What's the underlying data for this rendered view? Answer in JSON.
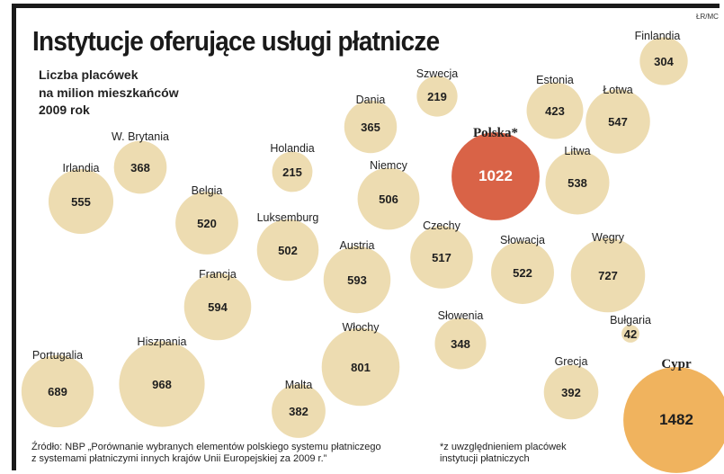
{
  "credit": "ŁR/MC",
  "title": "Instytucje oferujące usługi płatnicze",
  "subtitle": {
    "line1": "Liczba placówek",
    "line2": "na milion mieszkańców",
    "line3": "2009 rok"
  },
  "colors": {
    "bubble": "#eddcb1",
    "highlight_poland": "#d96347",
    "highlight_cyprus": "#f0b35e"
  },
  "chart_data": {
    "type": "bubble",
    "title": "Instytucje oferujące usługi płatnicze",
    "subtitle": "Liczba placówek na milion mieszkańców, 2009 rok",
    "points": [
      {
        "country": "Finlandia",
        "value": 304
      },
      {
        "country": "Szwecja",
        "value": 219
      },
      {
        "country": "Estonia",
        "value": 423
      },
      {
        "country": "Łotwa",
        "value": 547
      },
      {
        "country": "Dania",
        "value": 365
      },
      {
        "country": "Polska*",
        "value": 1022,
        "highlight": "poland"
      },
      {
        "country": "W. Brytania",
        "value": 368
      },
      {
        "country": "Holandia",
        "value": 215
      },
      {
        "country": "Litwa",
        "value": 538
      },
      {
        "country": "Irlandia",
        "value": 555
      },
      {
        "country": "Niemcy",
        "value": 506
      },
      {
        "country": "Belgia",
        "value": 520
      },
      {
        "country": "Luksemburg",
        "value": 502
      },
      {
        "country": "Czechy",
        "value": 517
      },
      {
        "country": "Słowacja",
        "value": 522
      },
      {
        "country": "Węgry",
        "value": 727
      },
      {
        "country": "Austria",
        "value": 593
      },
      {
        "country": "Francja",
        "value": 594
      },
      {
        "country": "Słowenia",
        "value": 348
      },
      {
        "country": "Bułgaria",
        "value": 42
      },
      {
        "country": "Portugalia",
        "value": 689
      },
      {
        "country": "Hiszpania",
        "value": 968
      },
      {
        "country": "Włochy",
        "value": 801
      },
      {
        "country": "Grecja",
        "value": 392
      },
      {
        "country": "Malta",
        "value": 382
      },
      {
        "country": "Cypr",
        "value": 1482,
        "highlight": "cyprus"
      }
    ]
  },
  "source_note": {
    "line1": "Źródło: NBP „Porównanie wybranych elementów polskiego systemu płatniczego",
    "line2": "z systemami płatniczymi innych krajów Unii Europejskiej za 2009 r.”"
  },
  "footnote": {
    "line1": "*z uwzględnieniem placówek",
    "line2": "instytucji płatniczych"
  }
}
